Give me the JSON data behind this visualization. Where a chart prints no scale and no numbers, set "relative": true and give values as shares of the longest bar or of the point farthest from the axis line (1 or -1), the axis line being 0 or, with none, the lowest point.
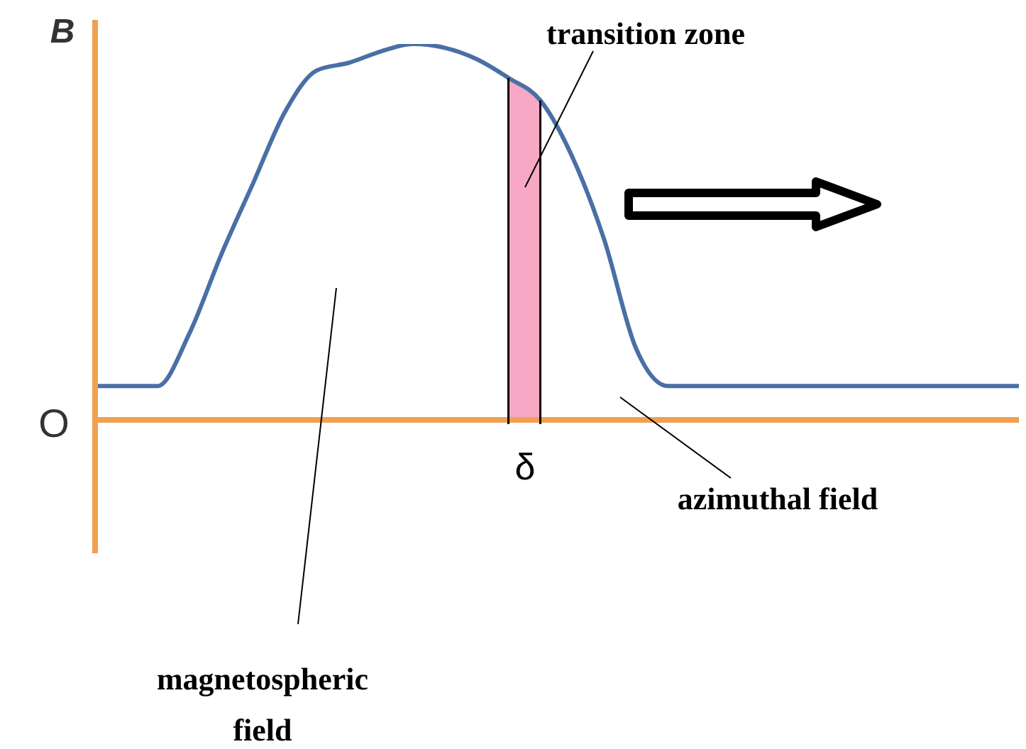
{
  "chart_data": {
    "type": "line",
    "relative": true,
    "ylabel": "B",
    "categories": [
      null,
      null,
      null,
      null,
      null,
      null,
      null,
      null,
      null,
      null,
      null,
      null,
      null,
      null,
      null,
      null,
      null,
      null,
      null,
      null,
      null,
      null,
      null,
      null,
      null,
      null,
      null,
      null,
      null,
      null
    ],
    "series": [
      {
        "type": "area",
        "color": "#f7a8c4",
        "values": [
          null,
          null,
          null,
          null,
          null,
          null,
          null,
          null,
          null,
          null,
          null,
          null,
          null,
          0.91,
          0.85,
          null,
          null,
          null,
          null,
          null,
          null,
          null,
          null,
          null,
          null,
          null,
          null,
          null,
          null,
          null
        ]
      },
      {
        "color": "#4a6fa5",
        "values": [
          0.09,
          0.09,
          0.09,
          0.23,
          0.44,
          0.63,
          0.82,
          0.93,
          0.95,
          0.98,
          1.0,
          0.99,
          0.96,
          0.91,
          0.85,
          0.7,
          0.48,
          0.19,
          0.09,
          0.09,
          0.09,
          0.09,
          0.09,
          0.09,
          0.09,
          0.09,
          0.09,
          0.09,
          0.09,
          0.09
        ]
      }
    ],
    "annotations": [
      "transition zone",
      "magnetospheric field",
      "azimuthal field",
      "δ",
      "O"
    ]
  }
}
